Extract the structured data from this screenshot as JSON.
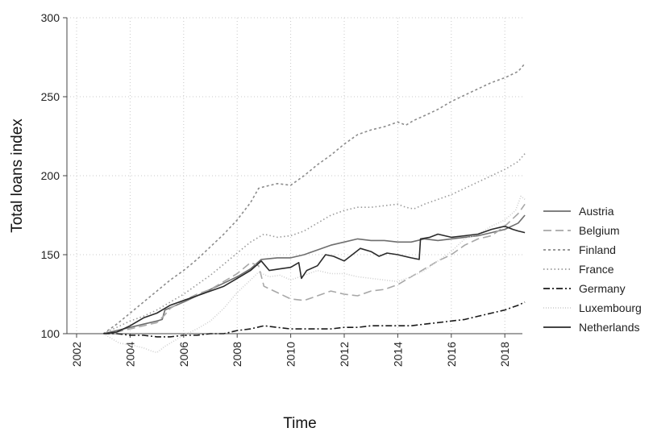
{
  "chart_data": {
    "type": "line",
    "title": "",
    "xlabel": "Time",
    "ylabel": "Total loans index",
    "xlim": [
      2002,
      2018.8
    ],
    "ylim": [
      100,
      300
    ],
    "xticks": [
      "2002",
      "2004",
      "2006",
      "2008",
      "2010",
      "2012",
      "2014",
      "2016",
      "2018"
    ],
    "yticks": [
      "100",
      "150",
      "200",
      "250",
      "300"
    ],
    "grid": true,
    "legend": "right",
    "series": [
      {
        "name": "Austria",
        "color": "#6e6e6e",
        "dash": "solid",
        "points": [
          [
            2003.0,
            100
          ],
          [
            2003.5,
            102
          ],
          [
            2004.0,
            104
          ],
          [
            2004.5,
            106
          ],
          [
            2005.0,
            108
          ],
          [
            2005.2,
            109
          ],
          [
            2005.3,
            115
          ],
          [
            2006.0,
            120
          ],
          [
            2006.5,
            124
          ],
          [
            2007.0,
            128
          ],
          [
            2007.5,
            132
          ],
          [
            2008.0,
            136
          ],
          [
            2008.5,
            141
          ],
          [
            2008.9,
            147
          ],
          [
            2009.5,
            148
          ],
          [
            2010.0,
            148
          ],
          [
            2010.5,
            150
          ],
          [
            2011.0,
            153
          ],
          [
            2011.5,
            156
          ],
          [
            2012.0,
            158
          ],
          [
            2012.5,
            160
          ],
          [
            2013.0,
            159
          ],
          [
            2013.5,
            159
          ],
          [
            2014.0,
            158
          ],
          [
            2014.5,
            158
          ],
          [
            2015.0,
            160
          ],
          [
            2015.5,
            159
          ],
          [
            2016.0,
            160
          ],
          [
            2016.5,
            161
          ],
          [
            2017.0,
            162
          ],
          [
            2017.5,
            164
          ],
          [
            2018.0,
            166
          ],
          [
            2018.5,
            170
          ],
          [
            2018.75,
            175
          ]
        ]
      },
      {
        "name": "Belgium",
        "color": "#a8a8a8",
        "dash": "long-dash",
        "points": [
          [
            2003.0,
            100
          ],
          [
            2003.5,
            101
          ],
          [
            2004.0,
            103
          ],
          [
            2004.5,
            105
          ],
          [
            2005.0,
            107
          ],
          [
            2005.3,
            112
          ],
          [
            2005.5,
            116
          ],
          [
            2006.0,
            121
          ],
          [
            2006.5,
            125
          ],
          [
            2007.0,
            128
          ],
          [
            2007.5,
            133
          ],
          [
            2008.0,
            138
          ],
          [
            2008.5,
            145
          ],
          [
            2008.8,
            143
          ],
          [
            2009.0,
            130
          ],
          [
            2009.5,
            126
          ],
          [
            2010.0,
            122
          ],
          [
            2010.5,
            121
          ],
          [
            2011.0,
            124
          ],
          [
            2011.5,
            127
          ],
          [
            2012.0,
            125
          ],
          [
            2012.5,
            124
          ],
          [
            2013.0,
            127
          ],
          [
            2013.5,
            128
          ],
          [
            2014.0,
            131
          ],
          [
            2014.5,
            136
          ],
          [
            2015.0,
            141
          ],
          [
            2015.5,
            146
          ],
          [
            2016.0,
            150
          ],
          [
            2016.5,
            156
          ],
          [
            2017.0,
            160
          ],
          [
            2017.5,
            162
          ],
          [
            2018.0,
            168
          ],
          [
            2018.5,
            176
          ],
          [
            2018.75,
            182
          ]
        ]
      },
      {
        "name": "Finland",
        "color": "#8c8c8c",
        "dash": "short-dash",
        "points": [
          [
            2003.0,
            100
          ],
          [
            2003.5,
            106
          ],
          [
            2004.0,
            113
          ],
          [
            2004.5,
            120
          ],
          [
            2005.0,
            127
          ],
          [
            2005.5,
            134
          ],
          [
            2006.0,
            140
          ],
          [
            2006.5,
            147
          ],
          [
            2007.0,
            155
          ],
          [
            2007.5,
            163
          ],
          [
            2008.0,
            172
          ],
          [
            2008.5,
            183
          ],
          [
            2008.8,
            192
          ],
          [
            2009.0,
            193
          ],
          [
            2009.5,
            195
          ],
          [
            2010.0,
            194
          ],
          [
            2010.5,
            200
          ],
          [
            2011.0,
            207
          ],
          [
            2011.5,
            213
          ],
          [
            2012.0,
            220
          ],
          [
            2012.5,
            226
          ],
          [
            2013.0,
            229
          ],
          [
            2013.5,
            231
          ],
          [
            2014.0,
            234
          ],
          [
            2014.3,
            232
          ],
          [
            2014.6,
            235
          ],
          [
            2015.0,
            238
          ],
          [
            2015.5,
            242
          ],
          [
            2016.0,
            247
          ],
          [
            2016.5,
            251
          ],
          [
            2017.0,
            255
          ],
          [
            2017.5,
            259
          ],
          [
            2018.0,
            262
          ],
          [
            2018.5,
            266
          ],
          [
            2018.75,
            271
          ]
        ]
      },
      {
        "name": "France",
        "color": "#9a9a9a",
        "dash": "dotted",
        "points": [
          [
            2003.0,
            100
          ],
          [
            2003.5,
            104
          ],
          [
            2004.0,
            108
          ],
          [
            2004.5,
            111
          ],
          [
            2005.0,
            115
          ],
          [
            2005.5,
            120
          ],
          [
            2006.0,
            125
          ],
          [
            2006.5,
            131
          ],
          [
            2007.0,
            137
          ],
          [
            2007.5,
            144
          ],
          [
            2008.0,
            151
          ],
          [
            2008.5,
            158
          ],
          [
            2009.0,
            163
          ],
          [
            2009.5,
            161
          ],
          [
            2010.0,
            162
          ],
          [
            2010.5,
            165
          ],
          [
            2011.0,
            170
          ],
          [
            2011.5,
            175
          ],
          [
            2012.0,
            178
          ],
          [
            2012.5,
            180
          ],
          [
            2013.0,
            180
          ],
          [
            2013.5,
            181
          ],
          [
            2014.0,
            182
          ],
          [
            2014.3,
            180
          ],
          [
            2014.6,
            179
          ],
          [
            2015.0,
            182
          ],
          [
            2015.5,
            185
          ],
          [
            2016.0,
            188
          ],
          [
            2016.5,
            192
          ],
          [
            2017.0,
            196
          ],
          [
            2017.5,
            200
          ],
          [
            2018.0,
            204
          ],
          [
            2018.5,
            209
          ],
          [
            2018.75,
            214
          ]
        ]
      },
      {
        "name": "Germany",
        "color": "#1a1a1a",
        "dash": "dash-dot",
        "points": [
          [
            2003.0,
            100
          ],
          [
            2003.5,
            100
          ],
          [
            2004.0,
            99
          ],
          [
            2004.5,
            99
          ],
          [
            2005.0,
            98
          ],
          [
            2005.5,
            98
          ],
          [
            2006.0,
            99
          ],
          [
            2006.5,
            99
          ],
          [
            2007.0,
            100
          ],
          [
            2007.5,
            100
          ],
          [
            2008.0,
            102
          ],
          [
            2008.5,
            103
          ],
          [
            2009.0,
            105
          ],
          [
            2009.5,
            104
          ],
          [
            2010.0,
            103
          ],
          [
            2010.5,
            103
          ],
          [
            2011.0,
            103
          ],
          [
            2011.5,
            103
          ],
          [
            2012.0,
            104
          ],
          [
            2012.5,
            104
          ],
          [
            2013.0,
            105
          ],
          [
            2013.5,
            105
          ],
          [
            2014.0,
            105
          ],
          [
            2014.5,
            105
          ],
          [
            2015.0,
            106
          ],
          [
            2015.5,
            107
          ],
          [
            2016.0,
            108
          ],
          [
            2016.5,
            109
          ],
          [
            2017.0,
            111
          ],
          [
            2017.5,
            113
          ],
          [
            2018.0,
            115
          ],
          [
            2018.5,
            118
          ],
          [
            2018.75,
            120
          ]
        ]
      },
      {
        "name": "Luxembourg",
        "color": "#d0d0d0",
        "dash": "fine-dotted",
        "points": [
          [
            2003.0,
            100
          ],
          [
            2003.3,
            97
          ],
          [
            2003.6,
            94
          ],
          [
            2004.0,
            93
          ],
          [
            2004.5,
            91
          ],
          [
            2004.8,
            89
          ],
          [
            2005.0,
            88
          ],
          [
            2005.3,
            92
          ],
          [
            2005.6,
            95
          ],
          [
            2006.0,
            99
          ],
          [
            2006.5,
            103
          ],
          [
            2007.0,
            108
          ],
          [
            2007.5,
            116
          ],
          [
            2008.0,
            126
          ],
          [
            2008.5,
            134
          ],
          [
            2008.8,
            139
          ],
          [
            2009.2,
            136
          ],
          [
            2009.6,
            137
          ],
          [
            2010.0,
            134
          ],
          [
            2010.5,
            137
          ],
          [
            2011.0,
            140
          ],
          [
            2011.5,
            138
          ],
          [
            2012.0,
            138
          ],
          [
            2012.5,
            136
          ],
          [
            2013.0,
            135
          ],
          [
            2013.5,
            134
          ],
          [
            2014.0,
            133
          ],
          [
            2014.5,
            136
          ],
          [
            2015.0,
            140
          ],
          [
            2015.5,
            146
          ],
          [
            2016.0,
            152
          ],
          [
            2016.5,
            160
          ],
          [
            2017.0,
            163
          ],
          [
            2017.5,
            168
          ],
          [
            2018.0,
            172
          ],
          [
            2018.4,
            178
          ],
          [
            2018.6,
            187
          ],
          [
            2018.75,
            185
          ]
        ]
      },
      {
        "name": "Netherlands",
        "color": "#2a2a2a",
        "dash": "solid",
        "points": [
          [
            2003.0,
            100
          ],
          [
            2003.5,
            101
          ],
          [
            2004.0,
            105
          ],
          [
            2004.5,
            110
          ],
          [
            2005.0,
            113
          ],
          [
            2005.5,
            118
          ],
          [
            2006.0,
            121
          ],
          [
            2006.5,
            124
          ],
          [
            2007.0,
            127
          ],
          [
            2007.5,
            130
          ],
          [
            2008.0,
            135
          ],
          [
            2008.5,
            140
          ],
          [
            2008.9,
            146
          ],
          [
            2009.2,
            140
          ],
          [
            2009.6,
            141
          ],
          [
            2010.0,
            142
          ],
          [
            2010.3,
            145
          ],
          [
            2010.4,
            135
          ],
          [
            2010.6,
            140
          ],
          [
            2011.0,
            143
          ],
          [
            2011.3,
            150
          ],
          [
            2011.6,
            149
          ],
          [
            2012.0,
            146
          ],
          [
            2012.3,
            150
          ],
          [
            2012.6,
            154
          ],
          [
            2013.0,
            152
          ],
          [
            2013.3,
            149
          ],
          [
            2013.6,
            151
          ],
          [
            2014.0,
            150
          ],
          [
            2014.5,
            148
          ],
          [
            2014.8,
            147
          ],
          [
            2014.85,
            160
          ],
          [
            2015.2,
            161
          ],
          [
            2015.5,
            163
          ],
          [
            2016.0,
            161
          ],
          [
            2016.5,
            162
          ],
          [
            2017.0,
            163
          ],
          [
            2017.5,
            166
          ],
          [
            2018.0,
            168
          ],
          [
            2018.3,
            166
          ],
          [
            2018.5,
            165
          ],
          [
            2018.75,
            164
          ]
        ]
      }
    ]
  }
}
